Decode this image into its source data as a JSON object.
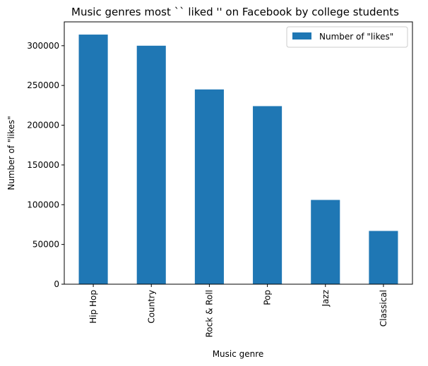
{
  "chart_data": {
    "type": "bar",
    "title": "Music genres most `` liked '' on Facebook by college students",
    "xlabel": "Music genre",
    "ylabel": "Number of \"likes\"",
    "categories": [
      "Hip Hop",
      "Country",
      "Rock & Roll",
      "Pop",
      "Jazz",
      "Classical"
    ],
    "series": [
      {
        "name": "Number of \"likes\"",
        "values": [
          314000,
          300000,
          245000,
          224000,
          106000,
          67000
        ],
        "color": "#1f77b4"
      }
    ],
    "ylim": [
      0,
      330000
    ],
    "yticks": [
      0,
      50000,
      100000,
      150000,
      200000,
      250000,
      300000
    ],
    "ytick_labels": [
      "0",
      "50000",
      "100000",
      "150000",
      "200000",
      "250000",
      "300000"
    ],
    "grid": false,
    "legend_position": "top-right"
  }
}
